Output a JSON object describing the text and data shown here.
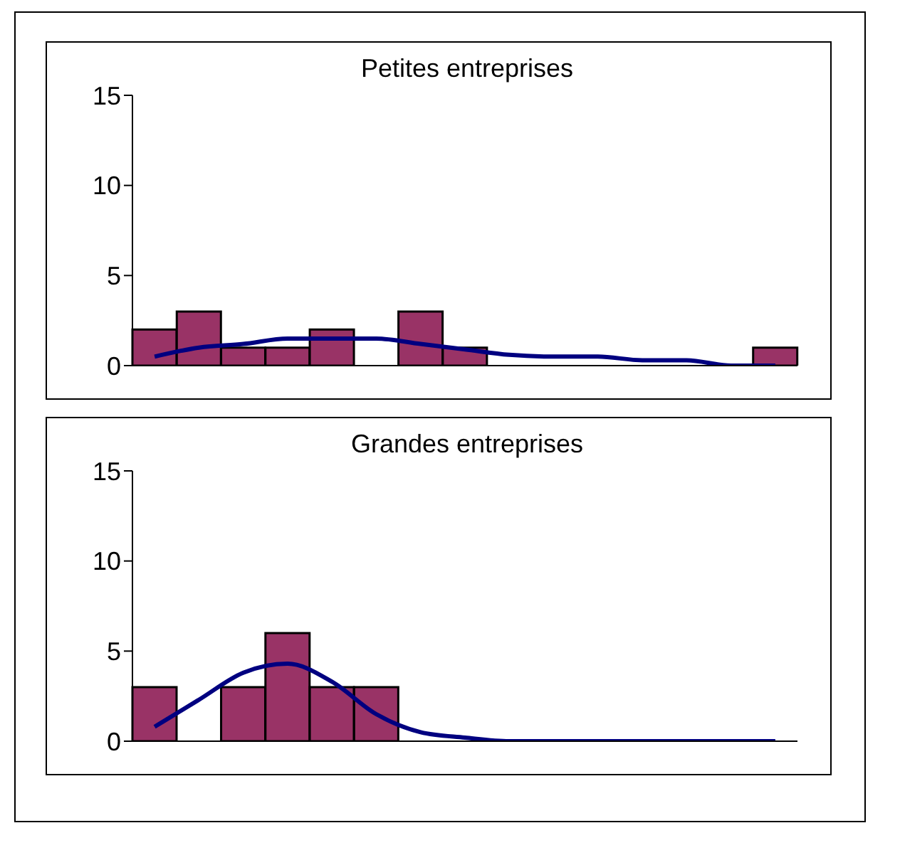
{
  "chart_data": [
    {
      "type": "bar",
      "title": "Petites entreprises",
      "categories": [
        null,
        null,
        null,
        null,
        null,
        null,
        null,
        null,
        null,
        null,
        null,
        null,
        null,
        null,
        null
      ],
      "ylim": [
        0,
        15
      ],
      "yticks": [
        0,
        5,
        10,
        15
      ],
      "tick_labels": "y",
      "grid": false,
      "series": [
        {
          "color": "#993366",
          "values": [
            2,
            3,
            1,
            1,
            2,
            0,
            3,
            1,
            0,
            0,
            0,
            0,
            0,
            0,
            1
          ]
        },
        {
          "type": "line",
          "color": "#000080",
          "values": [
            0.5,
            1.0,
            1.2,
            1.5,
            1.5,
            1.5,
            1.2,
            0.9,
            0.6,
            0.5,
            0.5,
            0.3,
            0.3,
            0,
            0
          ]
        }
      ]
    },
    {
      "type": "bar",
      "title": "Grandes entreprises",
      "categories": [
        null,
        null,
        null,
        null,
        null,
        null,
        null,
        null,
        null,
        null,
        null,
        null,
        null,
        null,
        null
      ],
      "ylim": [
        0,
        15
      ],
      "yticks": [
        0,
        5,
        10,
        15
      ],
      "tick_labels": "y",
      "grid": false,
      "series": [
        {
          "color": "#993366",
          "values": [
            3,
            0,
            3,
            6,
            3,
            3,
            0,
            0,
            0,
            0,
            0,
            0,
            0,
            0,
            0
          ]
        },
        {
          "type": "line",
          "color": "#000080",
          "values": [
            0.8,
            2.3,
            3.8,
            4.3,
            3.3,
            1.5,
            0.5,
            0.2,
            0,
            0,
            0,
            0,
            0,
            0,
            0
          ]
        }
      ]
    }
  ]
}
